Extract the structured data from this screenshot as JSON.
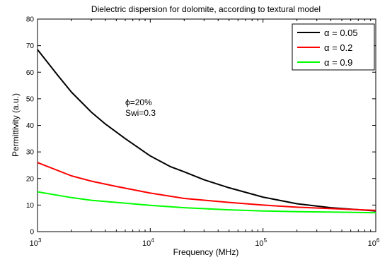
{
  "chart_data": {
    "type": "line",
    "title": "Dielectric dispersion for dolomite, according to textural model",
    "xlabel": "Frequency (MHz)",
    "ylabel": "Permittivity (a.u.)",
    "x_scale": "log",
    "xlim": [
      1000,
      1000000
    ],
    "ylim": [
      0,
      80
    ],
    "x_ticks": [
      {
        "value": 1000,
        "base": "10",
        "exp": "3"
      },
      {
        "value": 10000,
        "base": "10",
        "exp": "4"
      },
      {
        "value": 100000,
        "base": "10",
        "exp": "5"
      },
      {
        "value": 1000000,
        "base": "10",
        "exp": "6"
      }
    ],
    "y_ticks": [
      0,
      10,
      20,
      30,
      40,
      50,
      60,
      70,
      80
    ],
    "grid": false,
    "legend_position": "top-right",
    "annotations": [
      "ϕ=20%",
      "Swi=0.3"
    ],
    "series": [
      {
        "name": "α = 0.05",
        "color": "#000000",
        "x": [
          1000,
          1500,
          2000,
          3000,
          4000,
          6000,
          10000,
          15000,
          20000,
          30000,
          50000,
          100000,
          200000,
          400000,
          1000000
        ],
        "y": [
          68.5,
          59,
          52.5,
          45,
          40.5,
          35,
          28.5,
          24.5,
          22.5,
          19.5,
          16.5,
          13,
          10.5,
          9,
          7.8
        ]
      },
      {
        "name": "α = 0.2",
        "color": "#ff0000",
        "x": [
          1000,
          2000,
          3000,
          5000,
          10000,
          20000,
          50000,
          100000,
          200000,
          500000,
          1000000
        ],
        "y": [
          26,
          21,
          19,
          17,
          14.5,
          12.5,
          11,
          10,
          9.2,
          8.5,
          8
        ]
      },
      {
        "name": "α = 0.9",
        "color": "#00ff00",
        "x": [
          1000,
          2000,
          3000,
          5000,
          10000,
          20000,
          50000,
          100000,
          200000,
          500000,
          1000000
        ],
        "y": [
          15,
          12.8,
          11.8,
          11,
          9.9,
          9,
          8.2,
          7.8,
          7.5,
          7.3,
          7.1
        ]
      }
    ]
  }
}
